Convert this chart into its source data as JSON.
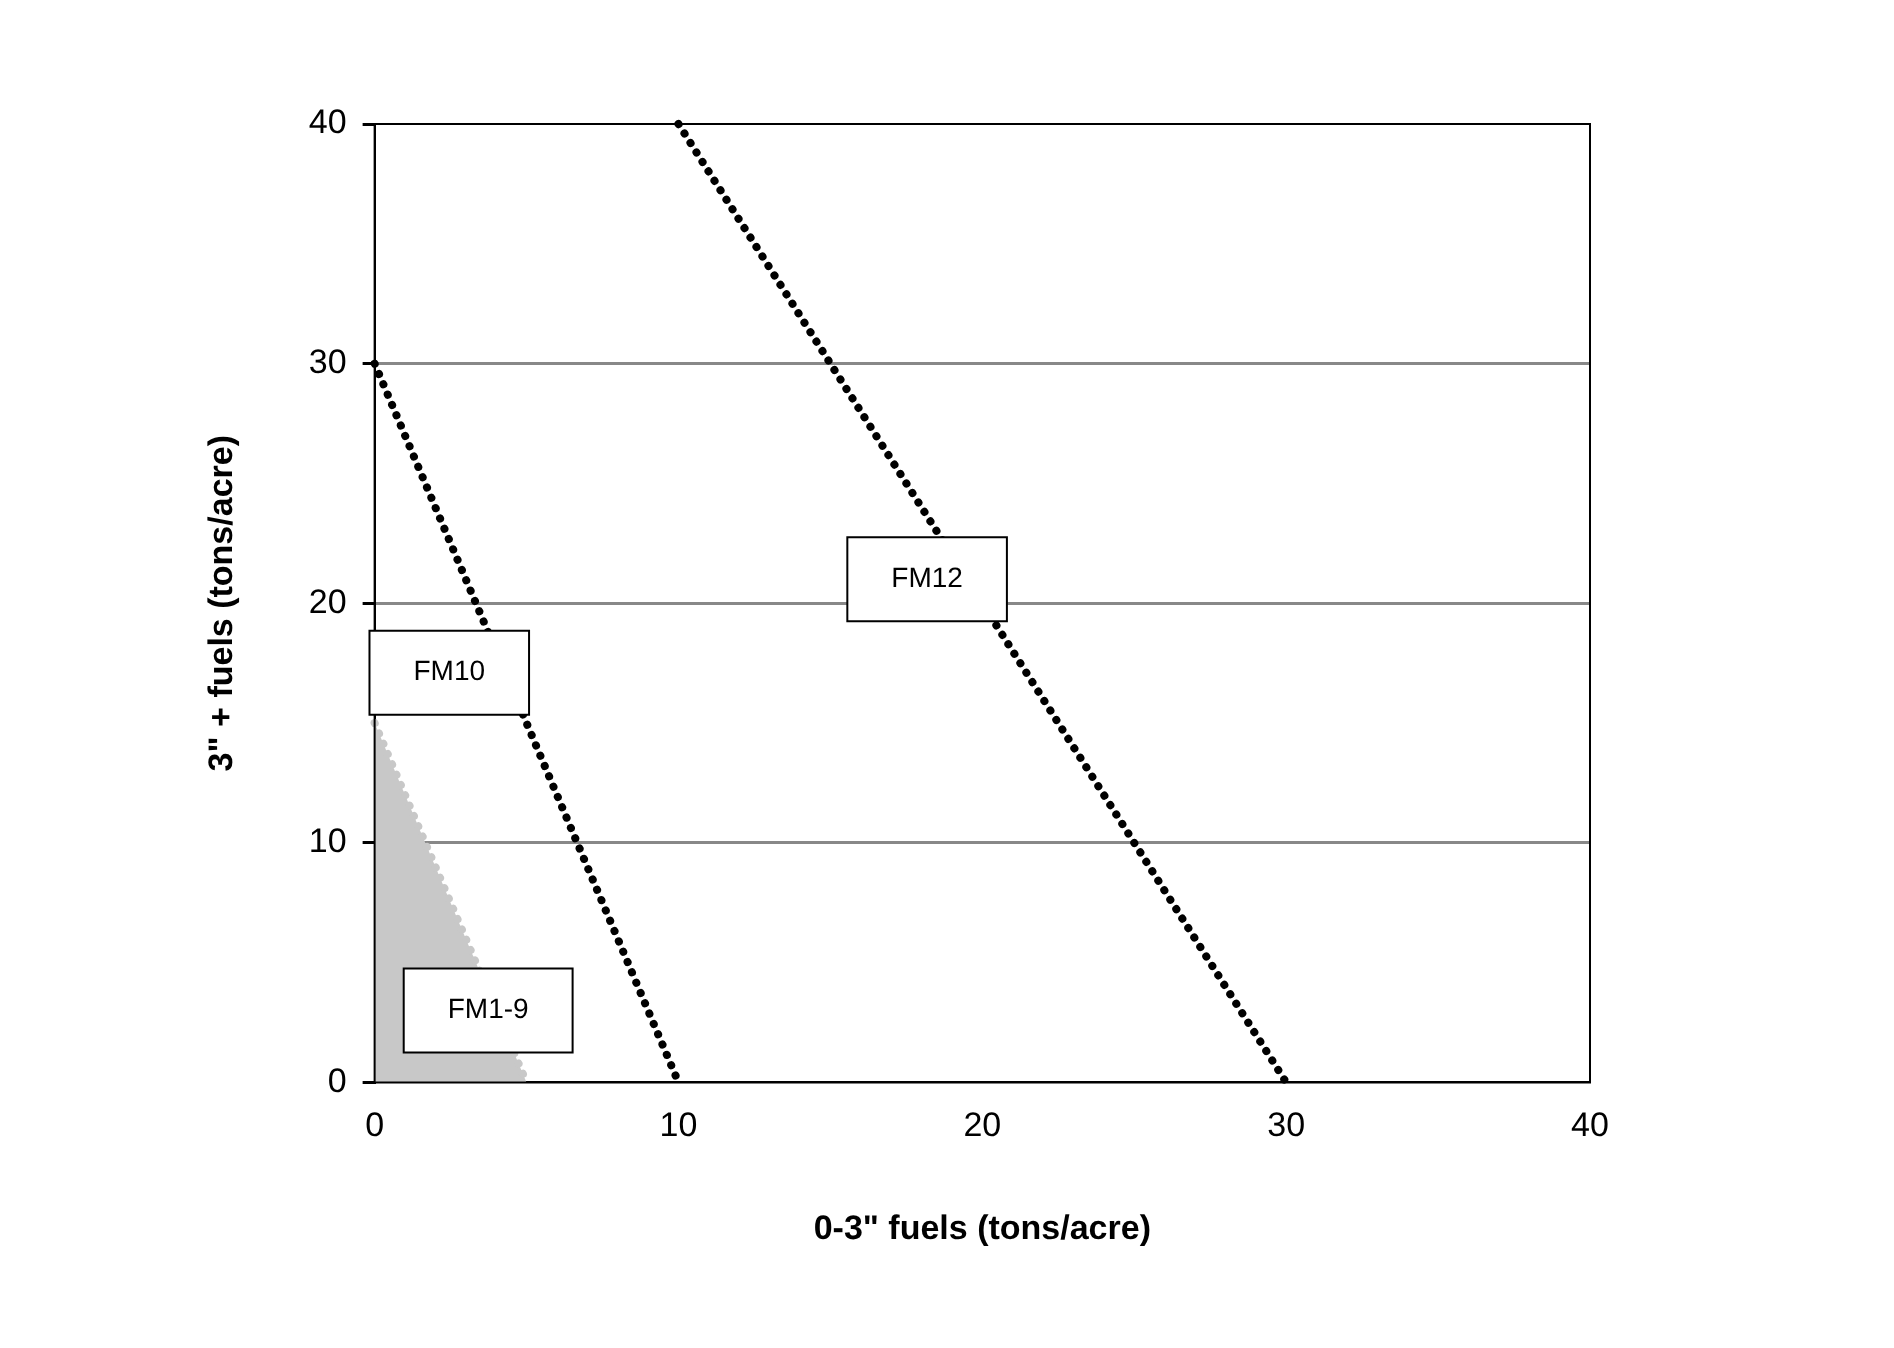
{
  "chart_data": {
    "type": "line",
    "xlabel": "0-3\" fuels (tons/acre)",
    "ylabel": "3\" + fuels (tons/acre)",
    "xlim": [
      0,
      40
    ],
    "ylim": [
      0,
      40
    ],
    "xticks": [
      0,
      10,
      20,
      30,
      40
    ],
    "yticks": [
      0,
      10,
      20,
      30,
      40
    ],
    "grid": "y",
    "line_style": "dotted",
    "marker": "none",
    "series": [
      {
        "type": "area",
        "name": "FM1-9",
        "color": "#c8c8c8",
        "x": [
          0,
          5
        ],
        "values": [
          15,
          0
        ]
      },
      {
        "name": "FM10",
        "color": "#000000",
        "x": [
          0,
          10
        ],
        "values": [
          30,
          0
        ]
      },
      {
        "name": "FM12",
        "color": "#000000",
        "x": [
          10,
          30
        ],
        "values": [
          40,
          0
        ]
      }
    ]
  }
}
